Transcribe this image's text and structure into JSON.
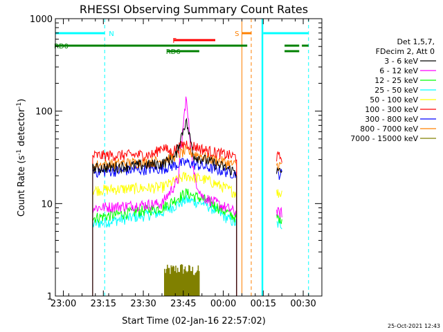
{
  "chart_data": {
    "type": "line",
    "title": "RHESSI Observing Summary Count Rates",
    "xlabel": "Start Time (02-Jan-16 22:57:02)",
    "ylabel_main": "Count Rate (s",
    "ylabel_sup1": "-1",
    "ylabel_mid": " detector",
    "ylabel_sup2": "-1",
    "ylabel_end": ")",
    "x_unit": "minutes since 22:57:02",
    "x_range": [
      0,
      100
    ],
    "ylim": [
      1,
      1000
    ],
    "yscale": "log",
    "x_ticks": [
      {
        "label": "23:00",
        "value": 3
      },
      {
        "label": "23:15",
        "value": 18
      },
      {
        "label": "23:30",
        "value": 33
      },
      {
        "label": "23:45",
        "value": 48
      },
      {
        "label": "00:00",
        "value": 63
      },
      {
        "label": "00:15",
        "value": 78
      },
      {
        "label": "00:30",
        "value": 93
      }
    ],
    "y_ticks": [
      {
        "label": "1",
        "value": 1
      },
      {
        "label": "10",
        "value": 10
      },
      {
        "label": "100",
        "value": 100
      },
      {
        "label": "1000",
        "value": 1000
      }
    ],
    "legend_header": [
      "Det 1,5,7,",
      "FDecim 2, Att 0"
    ],
    "legend_position": "right",
    "series": [
      {
        "name": "3 - 6 keV",
        "color": "#000000",
        "values": [
          [
            14,
            24
          ],
          [
            40,
            27
          ],
          [
            45,
            32
          ],
          [
            49,
            80
          ],
          [
            52,
            33
          ],
          [
            68,
            22
          ]
        ]
      },
      {
        "name": "6 - 12 keV",
        "color": "#ff00ff",
        "values": [
          [
            14,
            9
          ],
          [
            40,
            10
          ],
          [
            46,
            18
          ],
          [
            49,
            140
          ],
          [
            52,
            20
          ],
          [
            55,
            12
          ],
          [
            68,
            8
          ]
        ]
      },
      {
        "name": "12 - 25 keV",
        "color": "#00ff00",
        "values": [
          [
            14,
            7
          ],
          [
            40,
            9
          ],
          [
            49,
            13
          ],
          [
            56,
            11
          ],
          [
            68,
            7
          ]
        ]
      },
      {
        "name": "25 - 50 keV",
        "color": "#00ffff",
        "values": [
          [
            14,
            6
          ],
          [
            40,
            8
          ],
          [
            49,
            11
          ],
          [
            56,
            10
          ],
          [
            68,
            6
          ]
        ]
      },
      {
        "name": "50 - 100 keV",
        "color": "#ffff00",
        "values": [
          [
            14,
            14
          ],
          [
            40,
            15
          ],
          [
            49,
            20
          ],
          [
            57,
            18
          ],
          [
            68,
            13
          ]
        ]
      },
      {
        "name": "100 - 300 keV",
        "color": "#ff0000",
        "values": [
          [
            14,
            33
          ],
          [
            37,
            34
          ],
          [
            40,
            42
          ],
          [
            43,
            36
          ],
          [
            49,
            45
          ],
          [
            56,
            38
          ],
          [
            68,
            32
          ]
        ]
      },
      {
        "name": "300 - 800 keV",
        "color": "#0000ff",
        "values": [
          [
            14,
            22
          ],
          [
            40,
            24
          ],
          [
            49,
            28
          ],
          [
            56,
            25
          ],
          [
            68,
            21
          ]
        ]
      },
      {
        "name": "800 - 7000 keV",
        "color": "#ff8000",
        "values": [
          [
            14,
            26
          ],
          [
            40,
            29
          ],
          [
            49,
            37
          ],
          [
            56,
            32
          ],
          [
            68,
            26
          ]
        ]
      },
      {
        "name": "7000 - 15000 keV",
        "color": "#808000",
        "values": [
          [
            41,
            1.6
          ],
          [
            47,
            1.7
          ],
          [
            52,
            1.6
          ]
        ]
      }
    ],
    "flags": [
      {
        "label": "N",
        "color": "#00ffff",
        "segments": [
          [
            0,
            18.5
          ],
          [
            78,
            95
          ]
        ],
        "level": "top"
      },
      {
        "label": "S",
        "color": "#ff8000",
        "segments": [
          [
            70,
            73.5
          ]
        ],
        "level": "top"
      },
      {
        "label": "F",
        "color": "#ff0000",
        "segments": [
          [
            44.5,
            60
          ]
        ],
        "level": "upper"
      },
      {
        "label": "RD0",
        "color": "#008000",
        "segments": [
          [
            0,
            72
          ],
          [
            86,
            91.5
          ],
          [
            92.5,
            95
          ]
        ],
        "level": "middle"
      },
      {
        "label": "RD6",
        "color": "#008000",
        "segments": [
          [
            42,
            54
          ],
          [
            86,
            91.5
          ]
        ],
        "level": "lower"
      }
    ],
    "dashed_lines": [
      {
        "color": "#00ffff",
        "x": 18.5
      },
      {
        "color": "#ff8000",
        "x": 73.5
      },
      {
        "color": "#00ffff",
        "x": 95
      }
    ],
    "solid_lines": [
      {
        "color": "#00ffff",
        "x": 0
      },
      {
        "color": "#ff8000",
        "x": 70
      },
      {
        "color": "#00ffff",
        "x": 77.5
      }
    ],
    "saa_band": {
      "color": "#00ffff",
      "x0": 77.5,
      "x1": 78
    }
  },
  "timestamp": "25-Oct-2021 12:43"
}
